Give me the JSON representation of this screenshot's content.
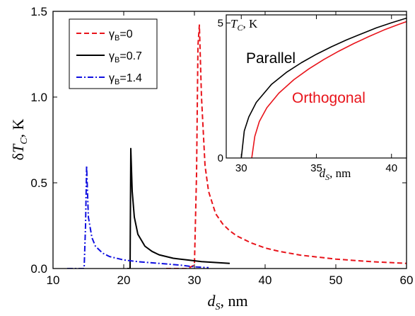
{
  "chart_data": [
    {
      "type": "line",
      "xlabel_symbol": "d",
      "xlabel_sub": "S",
      "xlabel_unit": ", nm",
      "ylabel_prefix": "δ",
      "ylabel_symbol": "T",
      "ylabel_sub": "C",
      "ylabel_unit": ", K",
      "xlim": [
        10,
        60
      ],
      "ylim": [
        0,
        1.5
      ],
      "x_ticks": [
        "10",
        "20",
        "30",
        "40",
        "50",
        "60"
      ],
      "y_ticks": [
        "0.0",
        "0.5",
        "1.0",
        "1.5"
      ],
      "legend_position": "top-left",
      "series": [
        {
          "name": "γB=0",
          "legend_symbol": "γ",
          "legend_sub": "B",
          "legend_value": "=0",
          "color": "#e8141b",
          "style": "dashed",
          "points": [
            [
              26,
              0
            ],
            [
              29,
              0
            ],
            [
              30,
              0.02
            ],
            [
              30.3,
              0.55
            ],
            [
              30.5,
              1.3
            ],
            [
              30.7,
              1.42
            ],
            [
              31,
              1.0
            ],
            [
              31.5,
              0.6
            ],
            [
              32,
              0.45
            ],
            [
              33,
              0.32
            ],
            [
              34,
              0.26
            ],
            [
              35,
              0.22
            ],
            [
              36,
              0.19
            ],
            [
              38,
              0.15
            ],
            [
              40,
              0.12
            ],
            [
              42,
              0.1
            ],
            [
              45,
              0.078
            ],
            [
              50,
              0.055
            ],
            [
              55,
              0.04
            ],
            [
              60,
              0.03
            ]
          ]
        },
        {
          "name": "γB=0.7",
          "legend_symbol": "γ",
          "legend_sub": "B",
          "legend_value": "=0.7",
          "color": "#000000",
          "style": "solid",
          "points": [
            [
              20.5,
              0
            ],
            [
              20.9,
              0
            ],
            [
              21.0,
              0.7
            ],
            [
              21.2,
              0.45
            ],
            [
              21.5,
              0.3
            ],
            [
              22,
              0.2
            ],
            [
              23,
              0.13
            ],
            [
              24,
              0.1
            ],
            [
              25,
              0.08
            ],
            [
              27,
              0.06
            ],
            [
              29,
              0.05
            ],
            [
              31,
              0.04
            ],
            [
              33,
              0.035
            ],
            [
              35,
              0.03
            ]
          ]
        },
        {
          "name": "γB=1.4",
          "legend_symbol": "γ",
          "legend_sub": "B",
          "legend_value": "=1.4",
          "color": "#1010e0",
          "style": "dashdot",
          "points": [
            [
              12,
              0
            ],
            [
              14.4,
              0
            ],
            [
              14.6,
              0.25
            ],
            [
              14.75,
              0.6
            ],
            [
              15,
              0.3
            ],
            [
              15.5,
              0.18
            ],
            [
              16,
              0.13
            ],
            [
              17,
              0.09
            ],
            [
              18,
              0.07
            ],
            [
              20,
              0.05
            ],
            [
              22,
              0.04
            ],
            [
              25,
              0.03
            ],
            [
              28,
              0.02
            ],
            [
              30,
              0.01
            ],
            [
              32,
              0.005
            ]
          ]
        }
      ]
    },
    {
      "type": "line",
      "inset": true,
      "ylabel_symbol": "T",
      "ylabel_sub": "C",
      "ylabel_unit": ", K",
      "xlabel_symbol": "d",
      "xlabel_sub": "S",
      "xlabel_unit": ", nm",
      "xlim": [
        29,
        41
      ],
      "ylim": [
        0,
        5.3
      ],
      "x_ticks": [
        "30",
        "35",
        "40"
      ],
      "y_ticks": [
        "0",
        "5"
      ],
      "series": [
        {
          "name": "Parallel",
          "color": "#000000",
          "points": [
            [
              30.0,
              0
            ],
            [
              30.2,
              1.0
            ],
            [
              30.5,
              1.52
            ],
            [
              31,
              2.06
            ],
            [
              32,
              2.72
            ],
            [
              33,
              3.17
            ],
            [
              34,
              3.53
            ],
            [
              35,
              3.84
            ],
            [
              36,
              4.12
            ],
            [
              37,
              4.37
            ],
            [
              38,
              4.6
            ],
            [
              39,
              4.82
            ],
            [
              40,
              5.01
            ],
            [
              41,
              5.18
            ]
          ]
        },
        {
          "name": "Orthogonal",
          "color": "#e8141b",
          "points": [
            [
              30.7,
              0
            ],
            [
              30.9,
              0.8
            ],
            [
              31.2,
              1.35
            ],
            [
              31.7,
              1.86
            ],
            [
              32.5,
              2.4
            ],
            [
              33.5,
              2.9
            ],
            [
              34.5,
              3.3
            ],
            [
              35.5,
              3.65
            ],
            [
              36.5,
              3.96
            ],
            [
              37.5,
              4.24
            ],
            [
              38.5,
              4.5
            ],
            [
              39.5,
              4.74
            ],
            [
              40.5,
              4.95
            ],
            [
              41,
              5.05
            ]
          ]
        }
      ],
      "annotations": [
        {
          "text": "Parallel",
          "color": "#000000"
        },
        {
          "text": "Orthogonal",
          "color": "#e8141b"
        }
      ]
    }
  ]
}
